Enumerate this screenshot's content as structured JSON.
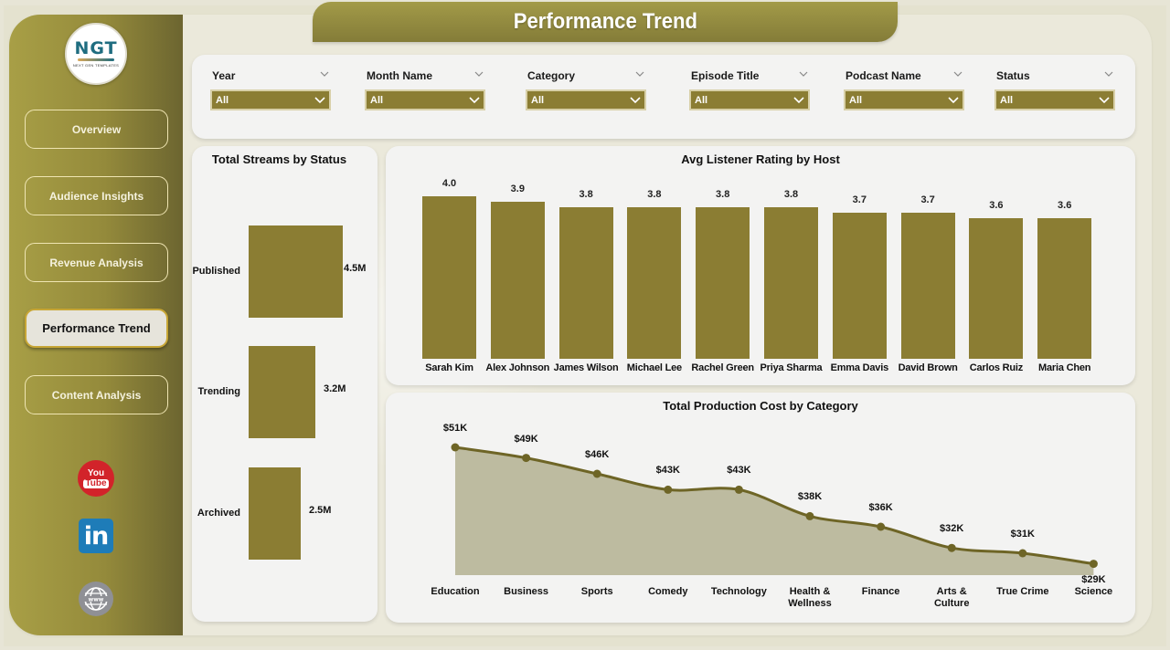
{
  "header": {
    "title": "Performance Trend"
  },
  "logo": {
    "main": "NGT",
    "sub": "NEXT GEN TEMPLATES"
  },
  "sidebar": {
    "items": [
      {
        "label": "Overview",
        "active": false
      },
      {
        "label": "Audience Insights",
        "active": false
      },
      {
        "label": "Revenue Analysis",
        "active": false
      },
      {
        "label": "Performance Trend",
        "active": true
      },
      {
        "label": "Content Analysis",
        "active": false
      }
    ],
    "social": [
      {
        "icon": "youtube-icon",
        "line1": "You",
        "line2": "Tube"
      },
      {
        "icon": "linkedin-icon",
        "text": "in"
      },
      {
        "icon": "website-globe-icon",
        "text": "www"
      }
    ]
  },
  "filters": [
    {
      "label": "Year",
      "value": "All"
    },
    {
      "label": "Month Name",
      "value": "All"
    },
    {
      "label": "Category",
      "value": "All"
    },
    {
      "label": "Episode Title",
      "value": "All"
    },
    {
      "label": "Podcast Name",
      "value": "All"
    },
    {
      "label": "Status",
      "value": "All"
    }
  ],
  "colors": {
    "accent": "#8b7d33",
    "sidebar_start": "#a89f46",
    "sidebar_end": "#6c6530",
    "area_fill": "#bdbba0",
    "line": "#6e6526"
  },
  "chart_data": [
    {
      "type": "bar",
      "orientation": "horizontal",
      "title": "Total Streams by Status",
      "categories": [
        "Published",
        "Trending",
        "Archived"
      ],
      "values": [
        4.5,
        3.2,
        2.5
      ],
      "value_labels": [
        "4.5M",
        "3.2M",
        "2.5M"
      ],
      "unit": "M"
    },
    {
      "type": "bar",
      "title": "Avg Listener Rating by Host",
      "categories": [
        "Sarah Kim",
        "Alex Johnson",
        "James Wilson",
        "Michael Lee",
        "Rachel Green",
        "Priya Sharma",
        "Emma Davis",
        "David Brown",
        "Carlos Ruiz",
        "Maria Chen"
      ],
      "values": [
        4.0,
        3.9,
        3.8,
        3.8,
        3.8,
        3.8,
        3.7,
        3.7,
        3.6,
        3.6
      ],
      "value_labels": [
        "4.0",
        "3.9",
        "3.8",
        "3.8",
        "3.8",
        "3.8",
        "3.7",
        "3.7",
        "3.6",
        "3.6"
      ]
    },
    {
      "type": "area",
      "title": "Total Production Cost by Category",
      "categories": [
        "Education",
        "Business",
        "Sports",
        "Comedy",
        "Technology",
        "Health & Wellness",
        "Finance",
        "Arts & Culture",
        "True Crime",
        "Science"
      ],
      "category_lines": [
        [
          "Education"
        ],
        [
          "Business"
        ],
        [
          "Sports"
        ],
        [
          "Comedy"
        ],
        [
          "Technology"
        ],
        [
          "Health &",
          "Wellness"
        ],
        [
          "Finance"
        ],
        [
          "Arts &",
          "Culture"
        ],
        [
          "True Crime"
        ],
        [
          "Science"
        ]
      ],
      "values": [
        51,
        49,
        46,
        43,
        43,
        38,
        36,
        32,
        31,
        29
      ],
      "value_labels": [
        "$51K",
        "$49K",
        "$46K",
        "$43K",
        "$43K",
        "$38K",
        "$36K",
        "$32K",
        "$31K",
        "$29K"
      ],
      "unit": "K USD"
    }
  ]
}
